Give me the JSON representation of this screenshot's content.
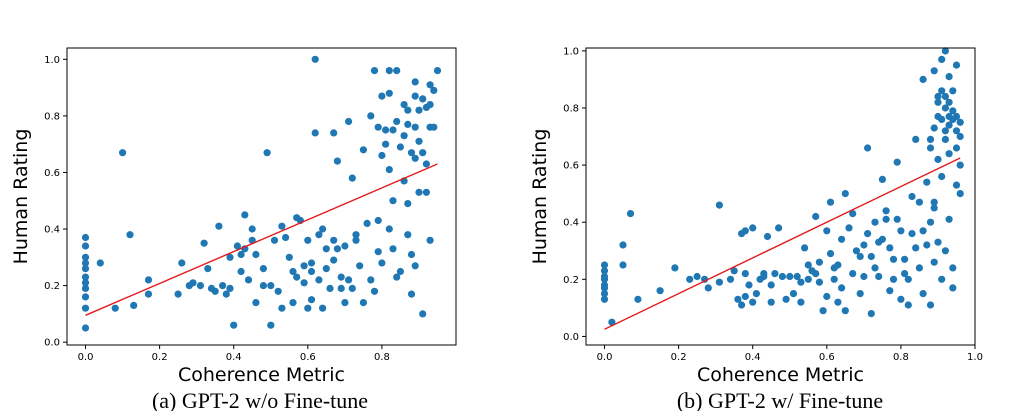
{
  "chart_data": [
    {
      "type": "scatter",
      "caption": "(a) GPT-2 w/o Fine-tune",
      "xlabel": "Coherence Metric",
      "ylabel": "Human Rating",
      "xticks": [
        "0.0",
        "0.2",
        "0.4",
        "0.6",
        "0.8"
      ],
      "yticks": [
        "0.0",
        "0.2",
        "0.4",
        "0.6",
        "0.8",
        "1.0"
      ],
      "xlim": [
        -0.05,
        1.0
      ],
      "ylim": [
        -0.01,
        1.04
      ],
      "grid": false,
      "colors": {
        "points": "#1f77b4",
        "fit": "#e41a1c"
      },
      "fit_line": {
        "x": [
          0.0,
          0.95
        ],
        "y": [
          0.095,
          0.63
        ]
      },
      "points": [
        [
          0.0,
          0.05
        ],
        [
          0.0,
          0.12
        ],
        [
          0.0,
          0.16
        ],
        [
          0.0,
          0.19
        ],
        [
          0.0,
          0.21
        ],
        [
          0.0,
          0.23
        ],
        [
          0.0,
          0.26
        ],
        [
          0.0,
          0.28
        ],
        [
          0.0,
          0.3
        ],
        [
          0.0,
          0.34
        ],
        [
          0.0,
          0.37
        ],
        [
          0.04,
          0.28
        ],
        [
          0.08,
          0.12
        ],
        [
          0.1,
          0.67
        ],
        [
          0.12,
          0.38
        ],
        [
          0.13,
          0.13
        ],
        [
          0.17,
          0.17
        ],
        [
          0.17,
          0.22
        ],
        [
          0.25,
          0.17
        ],
        [
          0.26,
          0.28
        ],
        [
          0.28,
          0.2
        ],
        [
          0.29,
          0.21
        ],
        [
          0.31,
          0.2
        ],
        [
          0.32,
          0.35
        ],
        [
          0.33,
          0.26
        ],
        [
          0.34,
          0.19
        ],
        [
          0.35,
          0.18
        ],
        [
          0.36,
          0.41
        ],
        [
          0.37,
          0.2
        ],
        [
          0.38,
          0.17
        ],
        [
          0.39,
          0.19
        ],
        [
          0.39,
          0.3
        ],
        [
          0.4,
          0.06
        ],
        [
          0.41,
          0.34
        ],
        [
          0.42,
          0.25
        ],
        [
          0.42,
          0.31
        ],
        [
          0.43,
          0.33
        ],
        [
          0.43,
          0.45
        ],
        [
          0.44,
          0.22
        ],
        [
          0.45,
          0.4
        ],
        [
          0.45,
          0.36
        ],
        [
          0.46,
          0.14
        ],
        [
          0.46,
          0.31
        ],
        [
          0.48,
          0.26
        ],
        [
          0.48,
          0.2
        ],
        [
          0.49,
          0.67
        ],
        [
          0.5,
          0.06
        ],
        [
          0.5,
          0.2
        ],
        [
          0.51,
          0.36
        ],
        [
          0.52,
          0.18
        ],
        [
          0.53,
          0.12
        ],
        [
          0.53,
          0.41
        ],
        [
          0.54,
          0.37
        ],
        [
          0.55,
          0.3
        ],
        [
          0.56,
          0.25
        ],
        [
          0.56,
          0.14
        ],
        [
          0.57,
          0.44
        ],
        [
          0.57,
          0.23
        ],
        [
          0.58,
          0.43
        ],
        [
          0.59,
          0.21
        ],
        [
          0.59,
          0.27
        ],
        [
          0.6,
          0.12
        ],
        [
          0.6,
          0.36
        ],
        [
          0.61,
          0.15
        ],
        [
          0.61,
          0.25
        ],
        [
          0.61,
          0.28
        ],
        [
          0.62,
          1.0
        ],
        [
          0.62,
          0.74
        ],
        [
          0.63,
          0.22
        ],
        [
          0.63,
          0.38
        ],
        [
          0.64,
          0.4
        ],
        [
          0.64,
          0.12
        ],
        [
          0.65,
          0.33
        ],
        [
          0.65,
          0.26
        ],
        [
          0.66,
          0.19
        ],
        [
          0.67,
          0.74
        ],
        [
          0.67,
          0.36
        ],
        [
          0.67,
          0.29
        ],
        [
          0.68,
          0.33
        ],
        [
          0.68,
          0.64
        ],
        [
          0.69,
          0.19
        ],
        [
          0.69,
          0.23
        ],
        [
          0.7,
          0.34
        ],
        [
          0.7,
          0.14
        ],
        [
          0.71,
          0.22
        ],
        [
          0.71,
          0.78
        ],
        [
          0.72,
          0.58
        ],
        [
          0.72,
          0.19
        ],
        [
          0.73,
          0.36
        ],
        [
          0.73,
          0.38
        ],
        [
          0.74,
          0.27
        ],
        [
          0.75,
          0.68
        ],
        [
          0.75,
          0.14
        ],
        [
          0.76,
          0.42
        ],
        [
          0.77,
          0.22
        ],
        [
          0.77,
          0.8
        ],
        [
          0.78,
          0.96
        ],
        [
          0.78,
          0.18
        ],
        [
          0.79,
          0.32
        ],
        [
          0.79,
          0.43
        ],
        [
          0.79,
          0.76
        ],
        [
          0.8,
          0.28
        ],
        [
          0.8,
          0.66
        ],
        [
          0.8,
          0.87
        ],
        [
          0.81,
          0.7
        ],
        [
          0.81,
          0.75
        ],
        [
          0.82,
          0.4
        ],
        [
          0.82,
          0.61
        ],
        [
          0.82,
          0.96
        ],
        [
          0.83,
          0.5
        ],
        [
          0.83,
          0.75
        ],
        [
          0.83,
          0.33
        ],
        [
          0.84,
          0.23
        ],
        [
          0.84,
          0.96
        ],
        [
          0.84,
          0.78
        ],
        [
          0.85,
          0.25
        ],
        [
          0.85,
          0.69
        ],
        [
          0.86,
          0.57
        ],
        [
          0.86,
          0.73
        ],
        [
          0.86,
          0.84
        ],
        [
          0.87,
          0.49
        ],
        [
          0.87,
          0.77
        ],
        [
          0.87,
          0.82
        ],
        [
          0.87,
          0.38
        ],
        [
          0.88,
          0.67
        ],
        [
          0.88,
          0.17
        ],
        [
          0.88,
          0.31
        ],
        [
          0.89,
          0.76
        ],
        [
          0.89,
          0.87
        ],
        [
          0.89,
          0.92
        ],
        [
          0.89,
          0.27
        ],
        [
          0.9,
          0.82
        ],
        [
          0.9,
          0.53
        ],
        [
          0.9,
          0.71
        ],
        [
          0.91,
          0.1
        ],
        [
          0.91,
          0.67
        ],
        [
          0.91,
          0.86
        ],
        [
          0.92,
          0.83
        ],
        [
          0.92,
          0.53
        ],
        [
          0.92,
          0.63
        ],
        [
          0.93,
          0.84
        ],
        [
          0.93,
          0.91
        ],
        [
          0.93,
          0.76
        ],
        [
          0.93,
          0.36
        ],
        [
          0.94,
          0.89
        ],
        [
          0.94,
          0.76
        ],
        [
          0.95,
          0.96
        ],
        [
          0.89,
          0.65
        ],
        [
          0.82,
          0.88
        ]
      ]
    },
    {
      "type": "scatter",
      "caption": "(b) GPT-2 w/ Fine-tune",
      "xlabel": "Coherence Metric",
      "ylabel": "Human Rating",
      "xticks": [
        "0.0",
        "0.2",
        "0.4",
        "0.6",
        "0.8",
        "1.0"
      ],
      "yticks": [
        "0.0",
        "0.2",
        "0.4",
        "0.6",
        "0.8",
        "1.0"
      ],
      "xlim": [
        -0.05,
        1.0
      ],
      "ylim": [
        -0.03,
        1.01
      ],
      "grid": false,
      "colors": {
        "points": "#1f77b4",
        "fit": "#e41a1c"
      },
      "fit_line": {
        "x": [
          0.0,
          0.96
        ],
        "y": [
          0.025,
          0.625
        ]
      },
      "points": [
        [
          0.0,
          0.13
        ],
        [
          0.0,
          0.15
        ],
        [
          0.0,
          0.17
        ],
        [
          0.0,
          0.18
        ],
        [
          0.0,
          0.2
        ],
        [
          0.0,
          0.21
        ],
        [
          0.0,
          0.23
        ],
        [
          0.0,
          0.25
        ],
        [
          0.02,
          0.05
        ],
        [
          0.05,
          0.25
        ],
        [
          0.05,
          0.32
        ],
        [
          0.07,
          0.43
        ],
        [
          0.09,
          0.13
        ],
        [
          0.15,
          0.16
        ],
        [
          0.19,
          0.24
        ],
        [
          0.23,
          0.2
        ],
        [
          0.25,
          0.21
        ],
        [
          0.27,
          0.2
        ],
        [
          0.28,
          0.17
        ],
        [
          0.31,
          0.19
        ],
        [
          0.31,
          0.46
        ],
        [
          0.34,
          0.2
        ],
        [
          0.35,
          0.23
        ],
        [
          0.36,
          0.13
        ],
        [
          0.37,
          0.11
        ],
        [
          0.37,
          0.36
        ],
        [
          0.38,
          0.14
        ],
        [
          0.38,
          0.22
        ],
        [
          0.38,
          0.37
        ],
        [
          0.39,
          0.18
        ],
        [
          0.4,
          0.12
        ],
        [
          0.4,
          0.38
        ],
        [
          0.41,
          0.15
        ],
        [
          0.42,
          0.2
        ],
        [
          0.43,
          0.21
        ],
        [
          0.43,
          0.22
        ],
        [
          0.44,
          0.35
        ],
        [
          0.45,
          0.18
        ],
        [
          0.45,
          0.12
        ],
        [
          0.46,
          0.22
        ],
        [
          0.47,
          0.38
        ],
        [
          0.48,
          0.21
        ],
        [
          0.49,
          0.13
        ],
        [
          0.5,
          0.21
        ],
        [
          0.51,
          0.15
        ],
        [
          0.52,
          0.21
        ],
        [
          0.53,
          0.19
        ],
        [
          0.53,
          0.12
        ],
        [
          0.54,
          0.31
        ],
        [
          0.55,
          0.25
        ],
        [
          0.55,
          0.2
        ],
        [
          0.56,
          0.23
        ],
        [
          0.57,
          0.42
        ],
        [
          0.57,
          0.22
        ],
        [
          0.58,
          0.26
        ],
        [
          0.58,
          0.19
        ],
        [
          0.59,
          0.09
        ],
        [
          0.6,
          0.37
        ],
        [
          0.6,
          0.14
        ],
        [
          0.61,
          0.29
        ],
        [
          0.61,
          0.47
        ],
        [
          0.62,
          0.2
        ],
        [
          0.62,
          0.24
        ],
        [
          0.63,
          0.12
        ],
        [
          0.63,
          0.25
        ],
        [
          0.64,
          0.17
        ],
        [
          0.64,
          0.34
        ],
        [
          0.65,
          0.09
        ],
        [
          0.65,
          0.5
        ],
        [
          0.66,
          0.38
        ],
        [
          0.67,
          0.22
        ],
        [
          0.67,
          0.43
        ],
        [
          0.68,
          0.3
        ],
        [
          0.69,
          0.28
        ],
        [
          0.69,
          0.15
        ],
        [
          0.7,
          0.32
        ],
        [
          0.7,
          0.21
        ],
        [
          0.71,
          0.36
        ],
        [
          0.71,
          0.66
        ],
        [
          0.72,
          0.08
        ],
        [
          0.72,
          0.28
        ],
        [
          0.73,
          0.24
        ],
        [
          0.73,
          0.4
        ],
        [
          0.74,
          0.33
        ],
        [
          0.74,
          0.21
        ],
        [
          0.75,
          0.34
        ],
        [
          0.75,
          0.55
        ],
        [
          0.76,
          0.41
        ],
        [
          0.76,
          0.44
        ],
        [
          0.77,
          0.31
        ],
        [
          0.77,
          0.16
        ],
        [
          0.78,
          0.2
        ],
        [
          0.78,
          0.27
        ],
        [
          0.79,
          0.41
        ],
        [
          0.79,
          0.61
        ],
        [
          0.8,
          0.13
        ],
        [
          0.8,
          0.37
        ],
        [
          0.81,
          0.22
        ],
        [
          0.81,
          0.27
        ],
        [
          0.82,
          0.11
        ],
        [
          0.82,
          0.2
        ],
        [
          0.83,
          0.36
        ],
        [
          0.83,
          0.49
        ],
        [
          0.84,
          0.31
        ],
        [
          0.84,
          0.69
        ],
        [
          0.85,
          0.47
        ],
        [
          0.85,
          0.24
        ],
        [
          0.86,
          0.37
        ],
        [
          0.86,
          0.15
        ],
        [
          0.86,
          0.9
        ],
        [
          0.87,
          0.54
        ],
        [
          0.87,
          0.32
        ],
        [
          0.88,
          0.4
        ],
        [
          0.88,
          0.11
        ],
        [
          0.88,
          0.66
        ],
        [
          0.89,
          0.26
        ],
        [
          0.89,
          0.45
        ],
        [
          0.89,
          0.73
        ],
        [
          0.89,
          0.47
        ],
        [
          0.9,
          0.77
        ],
        [
          0.9,
          0.33
        ],
        [
          0.9,
          0.62
        ],
        [
          0.9,
          0.82
        ],
        [
          0.91,
          0.76
        ],
        [
          0.91,
          0.86
        ],
        [
          0.91,
          0.56
        ],
        [
          0.91,
          0.2
        ],
        [
          0.92,
          0.8
        ],
        [
          0.92,
          0.69
        ],
        [
          0.92,
          1.0
        ],
        [
          0.92,
          0.72
        ],
        [
          0.92,
          0.3
        ],
        [
          0.93,
          0.74
        ],
        [
          0.93,
          0.77
        ],
        [
          0.93,
          0.82
        ],
        [
          0.93,
          0.91
        ],
        [
          0.93,
          0.41
        ],
        [
          0.93,
          0.64
        ],
        [
          0.94,
          0.76
        ],
        [
          0.94,
          0.79
        ],
        [
          0.94,
          0.86
        ],
        [
          0.94,
          0.17
        ],
        [
          0.94,
          0.24
        ],
        [
          0.95,
          0.72
        ],
        [
          0.95,
          0.77
        ],
        [
          0.95,
          0.95
        ],
        [
          0.95,
          0.53
        ],
        [
          0.95,
          0.66
        ],
        [
          0.96,
          0.75
        ],
        [
          0.96,
          0.7
        ],
        [
          0.96,
          0.5
        ],
        [
          0.96,
          0.6
        ],
        [
          0.91,
          0.97
        ],
        [
          0.92,
          0.84
        ],
        [
          0.88,
          0.69
        ],
        [
          0.9,
          0.84
        ],
        [
          0.89,
          0.93
        ]
      ]
    }
  ]
}
